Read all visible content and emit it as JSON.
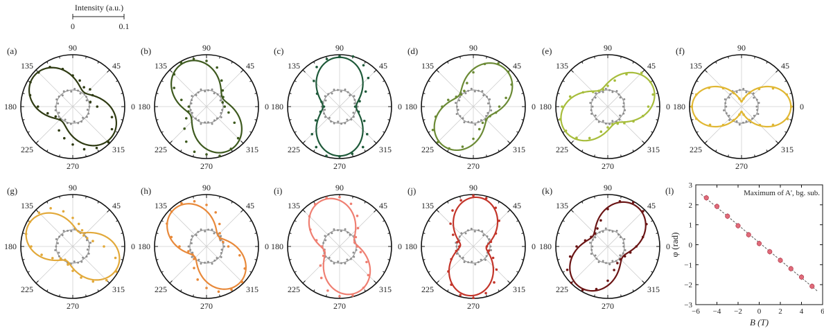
{
  "scale_bar": {
    "title": "Intensity (a.u.)",
    "min_label": "0",
    "max_label": "0.1",
    "max_value": 0.1
  },
  "polar_common": {
    "angle_labels": [
      "0",
      "45",
      "90",
      "135",
      "180",
      "225",
      "270",
      "315"
    ],
    "reference_circle_color": "#999999",
    "background_points_color": "#8e8e8e"
  },
  "chart_data": [
    {
      "panel": "(a)",
      "type": "polar",
      "angle_deg": 142,
      "peak": 0.095,
      "valley": 0.035,
      "color": "#2f3b13",
      "points": [
        [
          0,
          0.047
        ],
        [
          15,
          0.035
        ],
        [
          30,
          0.044
        ],
        [
          45,
          0.047
        ],
        [
          60,
          0.043
        ],
        [
          75,
          0.052
        ],
        [
          90,
          0.06
        ],
        [
          105,
          0.075
        ],
        [
          120,
          0.088
        ],
        [
          135,
          0.093
        ],
        [
          150,
          0.094
        ],
        [
          165,
          0.085
        ],
        [
          180,
          0.067
        ],
        [
          195,
          0.05
        ],
        [
          210,
          0.038
        ],
        [
          225,
          0.035
        ],
        [
          240,
          0.053
        ],
        [
          255,
          0.063
        ],
        [
          270,
          0.073
        ],
        [
          285,
          0.085
        ],
        [
          300,
          0.092
        ],
        [
          315,
          0.097
        ],
        [
          330,
          0.087
        ],
        [
          345,
          0.078
        ]
      ]
    },
    {
      "panel": "(b)",
      "type": "polar",
      "angle_deg": 118,
      "peak": 0.095,
      "valley": 0.035,
      "color": "#3e5a1f",
      "points": [
        [
          0,
          0.035
        ],
        [
          15,
          0.032
        ],
        [
          30,
          0.037
        ],
        [
          45,
          0.044
        ],
        [
          60,
          0.058
        ],
        [
          75,
          0.078
        ],
        [
          90,
          0.088
        ],
        [
          105,
          0.095
        ],
        [
          120,
          0.098
        ],
        [
          135,
          0.088
        ],
        [
          150,
          0.072
        ],
        [
          165,
          0.05
        ],
        [
          180,
          0.034
        ],
        [
          195,
          0.036
        ],
        [
          210,
          0.045
        ],
        [
          225,
          0.06
        ],
        [
          240,
          0.078
        ],
        [
          255,
          0.09
        ],
        [
          270,
          0.092
        ],
        [
          285,
          0.098
        ],
        [
          300,
          0.094
        ],
        [
          315,
          0.086
        ],
        [
          330,
          0.062
        ],
        [
          345,
          0.044
        ]
      ]
    },
    {
      "panel": "(c)",
      "type": "polar",
      "angle_deg": 90,
      "peak": 0.095,
      "valley": 0.032,
      "color": "#1f5a3a",
      "points": [
        [
          0,
          0.03
        ],
        [
          15,
          0.04
        ],
        [
          30,
          0.058
        ],
        [
          45,
          0.078
        ],
        [
          60,
          0.092
        ],
        [
          75,
          0.1
        ],
        [
          90,
          0.097
        ],
        [
          105,
          0.095
        ],
        [
          120,
          0.088
        ],
        [
          135,
          0.07
        ],
        [
          150,
          0.05
        ],
        [
          165,
          0.036
        ],
        [
          180,
          0.03
        ],
        [
          195,
          0.038
        ],
        [
          210,
          0.053
        ],
        [
          225,
          0.075
        ],
        [
          240,
          0.09
        ],
        [
          255,
          0.098
        ],
        [
          270,
          0.096
        ],
        [
          285,
          0.094
        ],
        [
          300,
          0.09
        ],
        [
          315,
          0.075
        ],
        [
          330,
          0.055
        ],
        [
          345,
          0.038
        ]
      ]
    },
    {
      "panel": "(d)",
      "type": "polar",
      "angle_deg": 52,
      "peak": 0.095,
      "valley": 0.035,
      "color": "#6b8a35",
      "points": [
        [
          0,
          0.05
        ],
        [
          15,
          0.065
        ],
        [
          30,
          0.085
        ],
        [
          45,
          0.095
        ],
        [
          60,
          0.096
        ],
        [
          75,
          0.085
        ],
        [
          90,
          0.066
        ],
        [
          105,
          0.047
        ],
        [
          120,
          0.035
        ],
        [
          135,
          0.033
        ],
        [
          150,
          0.038
        ],
        [
          165,
          0.05
        ],
        [
          180,
          0.06
        ],
        [
          195,
          0.075
        ],
        [
          210,
          0.09
        ],
        [
          225,
          0.097
        ],
        [
          240,
          0.093
        ],
        [
          255,
          0.08
        ],
        [
          270,
          0.062
        ],
        [
          285,
          0.045
        ],
        [
          300,
          0.036
        ],
        [
          315,
          0.035
        ],
        [
          330,
          0.037
        ],
        [
          345,
          0.045
        ]
      ]
    },
    {
      "panel": "(e)",
      "type": "polar",
      "angle_deg": 25,
      "peak": 0.095,
      "valley": 0.035,
      "color": "#a7bd3c",
      "points": [
        [
          0,
          0.078
        ],
        [
          15,
          0.09
        ],
        [
          30,
          0.095
        ],
        [
          45,
          0.092
        ],
        [
          60,
          0.072
        ],
        [
          75,
          0.052
        ],
        [
          90,
          0.04
        ],
        [
          105,
          0.034
        ],
        [
          120,
          0.035
        ],
        [
          135,
          0.04
        ],
        [
          150,
          0.055
        ],
        [
          165,
          0.075
        ],
        [
          180,
          0.088
        ],
        [
          195,
          0.095
        ],
        [
          210,
          0.093
        ],
        [
          225,
          0.085
        ],
        [
          240,
          0.07
        ],
        [
          255,
          0.05
        ],
        [
          270,
          0.04
        ],
        [
          285,
          0.035
        ],
        [
          300,
          0.038
        ],
        [
          315,
          0.045
        ],
        [
          330,
          0.057
        ],
        [
          345,
          0.07
        ]
      ]
    },
    {
      "panel": "(f)",
      "type": "polar",
      "angle_deg": 0,
      "peak": 0.095,
      "valley": 0.01,
      "color": "#e0b733",
      "points": [
        [
          0,
          0.096
        ],
        [
          15,
          0.09
        ],
        [
          30,
          0.07
        ],
        [
          45,
          0.048
        ],
        [
          60,
          0.03
        ],
        [
          75,
          0.016
        ],
        [
          90,
          0.01
        ],
        [
          105,
          0.016
        ],
        [
          120,
          0.03
        ],
        [
          135,
          0.05
        ],
        [
          150,
          0.072
        ],
        [
          165,
          0.09
        ],
        [
          180,
          0.096
        ],
        [
          195,
          0.09
        ],
        [
          210,
          0.07
        ],
        [
          225,
          0.05
        ],
        [
          240,
          0.03
        ],
        [
          255,
          0.016
        ],
        [
          270,
          0.01
        ],
        [
          285,
          0.016
        ],
        [
          300,
          0.03
        ],
        [
          315,
          0.05
        ],
        [
          330,
          0.07
        ],
        [
          345,
          0.092
        ]
      ]
    },
    {
      "panel": "(g)",
      "type": "polar",
      "angle_deg": 155,
      "peak": 0.095,
      "valley": 0.03,
      "color": "#e2a93a",
      "points": [
        [
          0,
          0.06
        ],
        [
          15,
          0.04
        ],
        [
          30,
          0.032
        ],
        [
          45,
          0.03
        ],
        [
          60,
          0.036
        ],
        [
          75,
          0.045
        ],
        [
          90,
          0.055
        ],
        [
          105,
          0.07
        ],
        [
          120,
          0.085
        ],
        [
          135,
          0.092
        ],
        [
          150,
          0.095
        ],
        [
          165,
          0.093
        ],
        [
          180,
          0.08
        ],
        [
          195,
          0.062
        ],
        [
          210,
          0.045
        ],
        [
          225,
          0.033
        ],
        [
          240,
          0.03
        ],
        [
          255,
          0.036
        ],
        [
          270,
          0.047
        ],
        [
          285,
          0.062
        ],
        [
          300,
          0.078
        ],
        [
          315,
          0.092
        ],
        [
          330,
          0.097
        ],
        [
          345,
          0.085
        ]
      ]
    },
    {
      "panel": "(h)",
      "type": "polar",
      "angle_deg": 130,
      "peak": 0.095,
      "valley": 0.03,
      "color": "#e8893a",
      "points": [
        [
          0,
          0.042
        ],
        [
          15,
          0.033
        ],
        [
          30,
          0.03
        ],
        [
          45,
          0.036
        ],
        [
          60,
          0.05
        ],
        [
          75,
          0.068
        ],
        [
          90,
          0.08
        ],
        [
          105,
          0.09
        ],
        [
          120,
          0.096
        ],
        [
          135,
          0.095
        ],
        [
          150,
          0.088
        ],
        [
          165,
          0.07
        ],
        [
          180,
          0.052
        ],
        [
          195,
          0.036
        ],
        [
          210,
          0.031
        ],
        [
          225,
          0.034
        ],
        [
          240,
          0.048
        ],
        [
          255,
          0.066
        ],
        [
          270,
          0.08
        ],
        [
          285,
          0.09
        ],
        [
          300,
          0.096
        ],
        [
          315,
          0.097
        ],
        [
          330,
          0.085
        ],
        [
          345,
          0.066
        ]
      ]
    },
    {
      "panel": "(i)",
      "type": "polar",
      "angle_deg": 108,
      "peak": 0.095,
      "valley": 0.03,
      "color": "#ef7f72",
      "points": [
        [
          0,
          0.034
        ],
        [
          15,
          0.03
        ],
        [
          30,
          0.036
        ],
        [
          45,
          0.05
        ],
        [
          60,
          0.068
        ],
        [
          75,
          0.085
        ],
        [
          90,
          0.095
        ],
        [
          105,
          0.097
        ],
        [
          120,
          0.094
        ],
        [
          135,
          0.082
        ],
        [
          150,
          0.065
        ],
        [
          165,
          0.046
        ],
        [
          180,
          0.034
        ],
        [
          195,
          0.031
        ],
        [
          210,
          0.036
        ],
        [
          225,
          0.052
        ],
        [
          240,
          0.07
        ],
        [
          255,
          0.088
        ],
        [
          270,
          0.096
        ],
        [
          285,
          0.098
        ],
        [
          300,
          0.092
        ],
        [
          315,
          0.078
        ],
        [
          330,
          0.06
        ],
        [
          345,
          0.042
        ]
      ]
    },
    {
      "panel": "(j)",
      "type": "polar",
      "angle_deg": 85,
      "peak": 0.095,
      "valley": 0.025,
      "color": "#c3352a",
      "points": [
        [
          0,
          0.026
        ],
        [
          15,
          0.035
        ],
        [
          30,
          0.05
        ],
        [
          45,
          0.07
        ],
        [
          60,
          0.086
        ],
        [
          75,
          0.096
        ],
        [
          90,
          0.098
        ],
        [
          105,
          0.092
        ],
        [
          120,
          0.08
        ],
        [
          135,
          0.062
        ],
        [
          150,
          0.045
        ],
        [
          165,
          0.032
        ],
        [
          180,
          0.027
        ],
        [
          195,
          0.034
        ],
        [
          210,
          0.049
        ],
        [
          225,
          0.068
        ],
        [
          240,
          0.085
        ],
        [
          255,
          0.097
        ],
        [
          270,
          0.099
        ],
        [
          285,
          0.093
        ],
        [
          300,
          0.08
        ],
        [
          315,
          0.063
        ],
        [
          330,
          0.044
        ],
        [
          345,
          0.031
        ]
      ]
    },
    {
      "panel": "(k)",
      "type": "polar",
      "angle_deg": 55,
      "peak": 0.095,
      "valley": 0.035,
      "color": "#6b1515",
      "points": [
        [
          0,
          0.055
        ],
        [
          15,
          0.07
        ],
        [
          30,
          0.086
        ],
        [
          45,
          0.096
        ],
        [
          60,
          0.098
        ],
        [
          75,
          0.09
        ],
        [
          90,
          0.072
        ],
        [
          105,
          0.052
        ],
        [
          120,
          0.04
        ],
        [
          135,
          0.035
        ],
        [
          150,
          0.037
        ],
        [
          165,
          0.045
        ],
        [
          180,
          0.06
        ],
        [
          195,
          0.075
        ],
        [
          210,
          0.09
        ],
        [
          225,
          0.099
        ],
        [
          240,
          0.097
        ],
        [
          255,
          0.085
        ],
        [
          270,
          0.066
        ],
        [
          285,
          0.047
        ],
        [
          300,
          0.037
        ],
        [
          315,
          0.035
        ],
        [
          330,
          0.038
        ],
        [
          345,
          0.045
        ]
      ]
    },
    {
      "panel": "(l)",
      "type": "scatter",
      "annotation": "Maximum of A', bg. sub.",
      "xlabel": "B (T)",
      "ylabel": "φ (rad)",
      "xlim": [
        -6,
        6
      ],
      "ylim": [
        -3,
        3
      ],
      "xticks": [
        -6,
        -4,
        -2,
        0,
        2,
        4,
        6
      ],
      "yticks": [
        -3,
        -2,
        -1,
        0,
        1,
        2,
        3
      ],
      "x": [
        -5,
        -4,
        -3,
        -2,
        -1,
        0,
        1,
        2,
        3,
        4,
        5
      ],
      "y": [
        2.35,
        1.92,
        1.43,
        0.95,
        0.5,
        0.06,
        -0.35,
        -0.78,
        -1.2,
        -1.62,
        -2.08
      ],
      "marker_color": "#e06b7a",
      "fit_color": "#555555"
    }
  ]
}
